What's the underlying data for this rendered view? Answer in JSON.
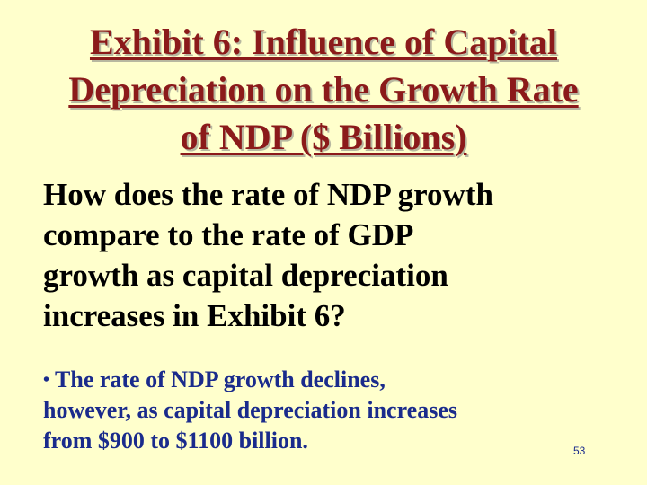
{
  "slide": {
    "title_lines": [
      "Exhibit 6: Influence of Capital",
      "Depreciation on the Growth Rate",
      "of NDP ($ Billions)"
    ],
    "question_lines": [
      "How does the rate of NDP growth",
      "compare to the rate of GDP",
      "growth as capital depreciation",
      "increases in Exhibit 6?"
    ],
    "bullet_symbol": "•",
    "answer_lines": [
      "The rate of NDP growth declines,",
      "however, as capital depreciation increases",
      "from $900 to $1100 billion."
    ],
    "page_number": "53",
    "colors": {
      "background": "#ffffcc",
      "title": "#8b1a1a",
      "question": "#000000",
      "answer": "#1a2b8c"
    }
  }
}
